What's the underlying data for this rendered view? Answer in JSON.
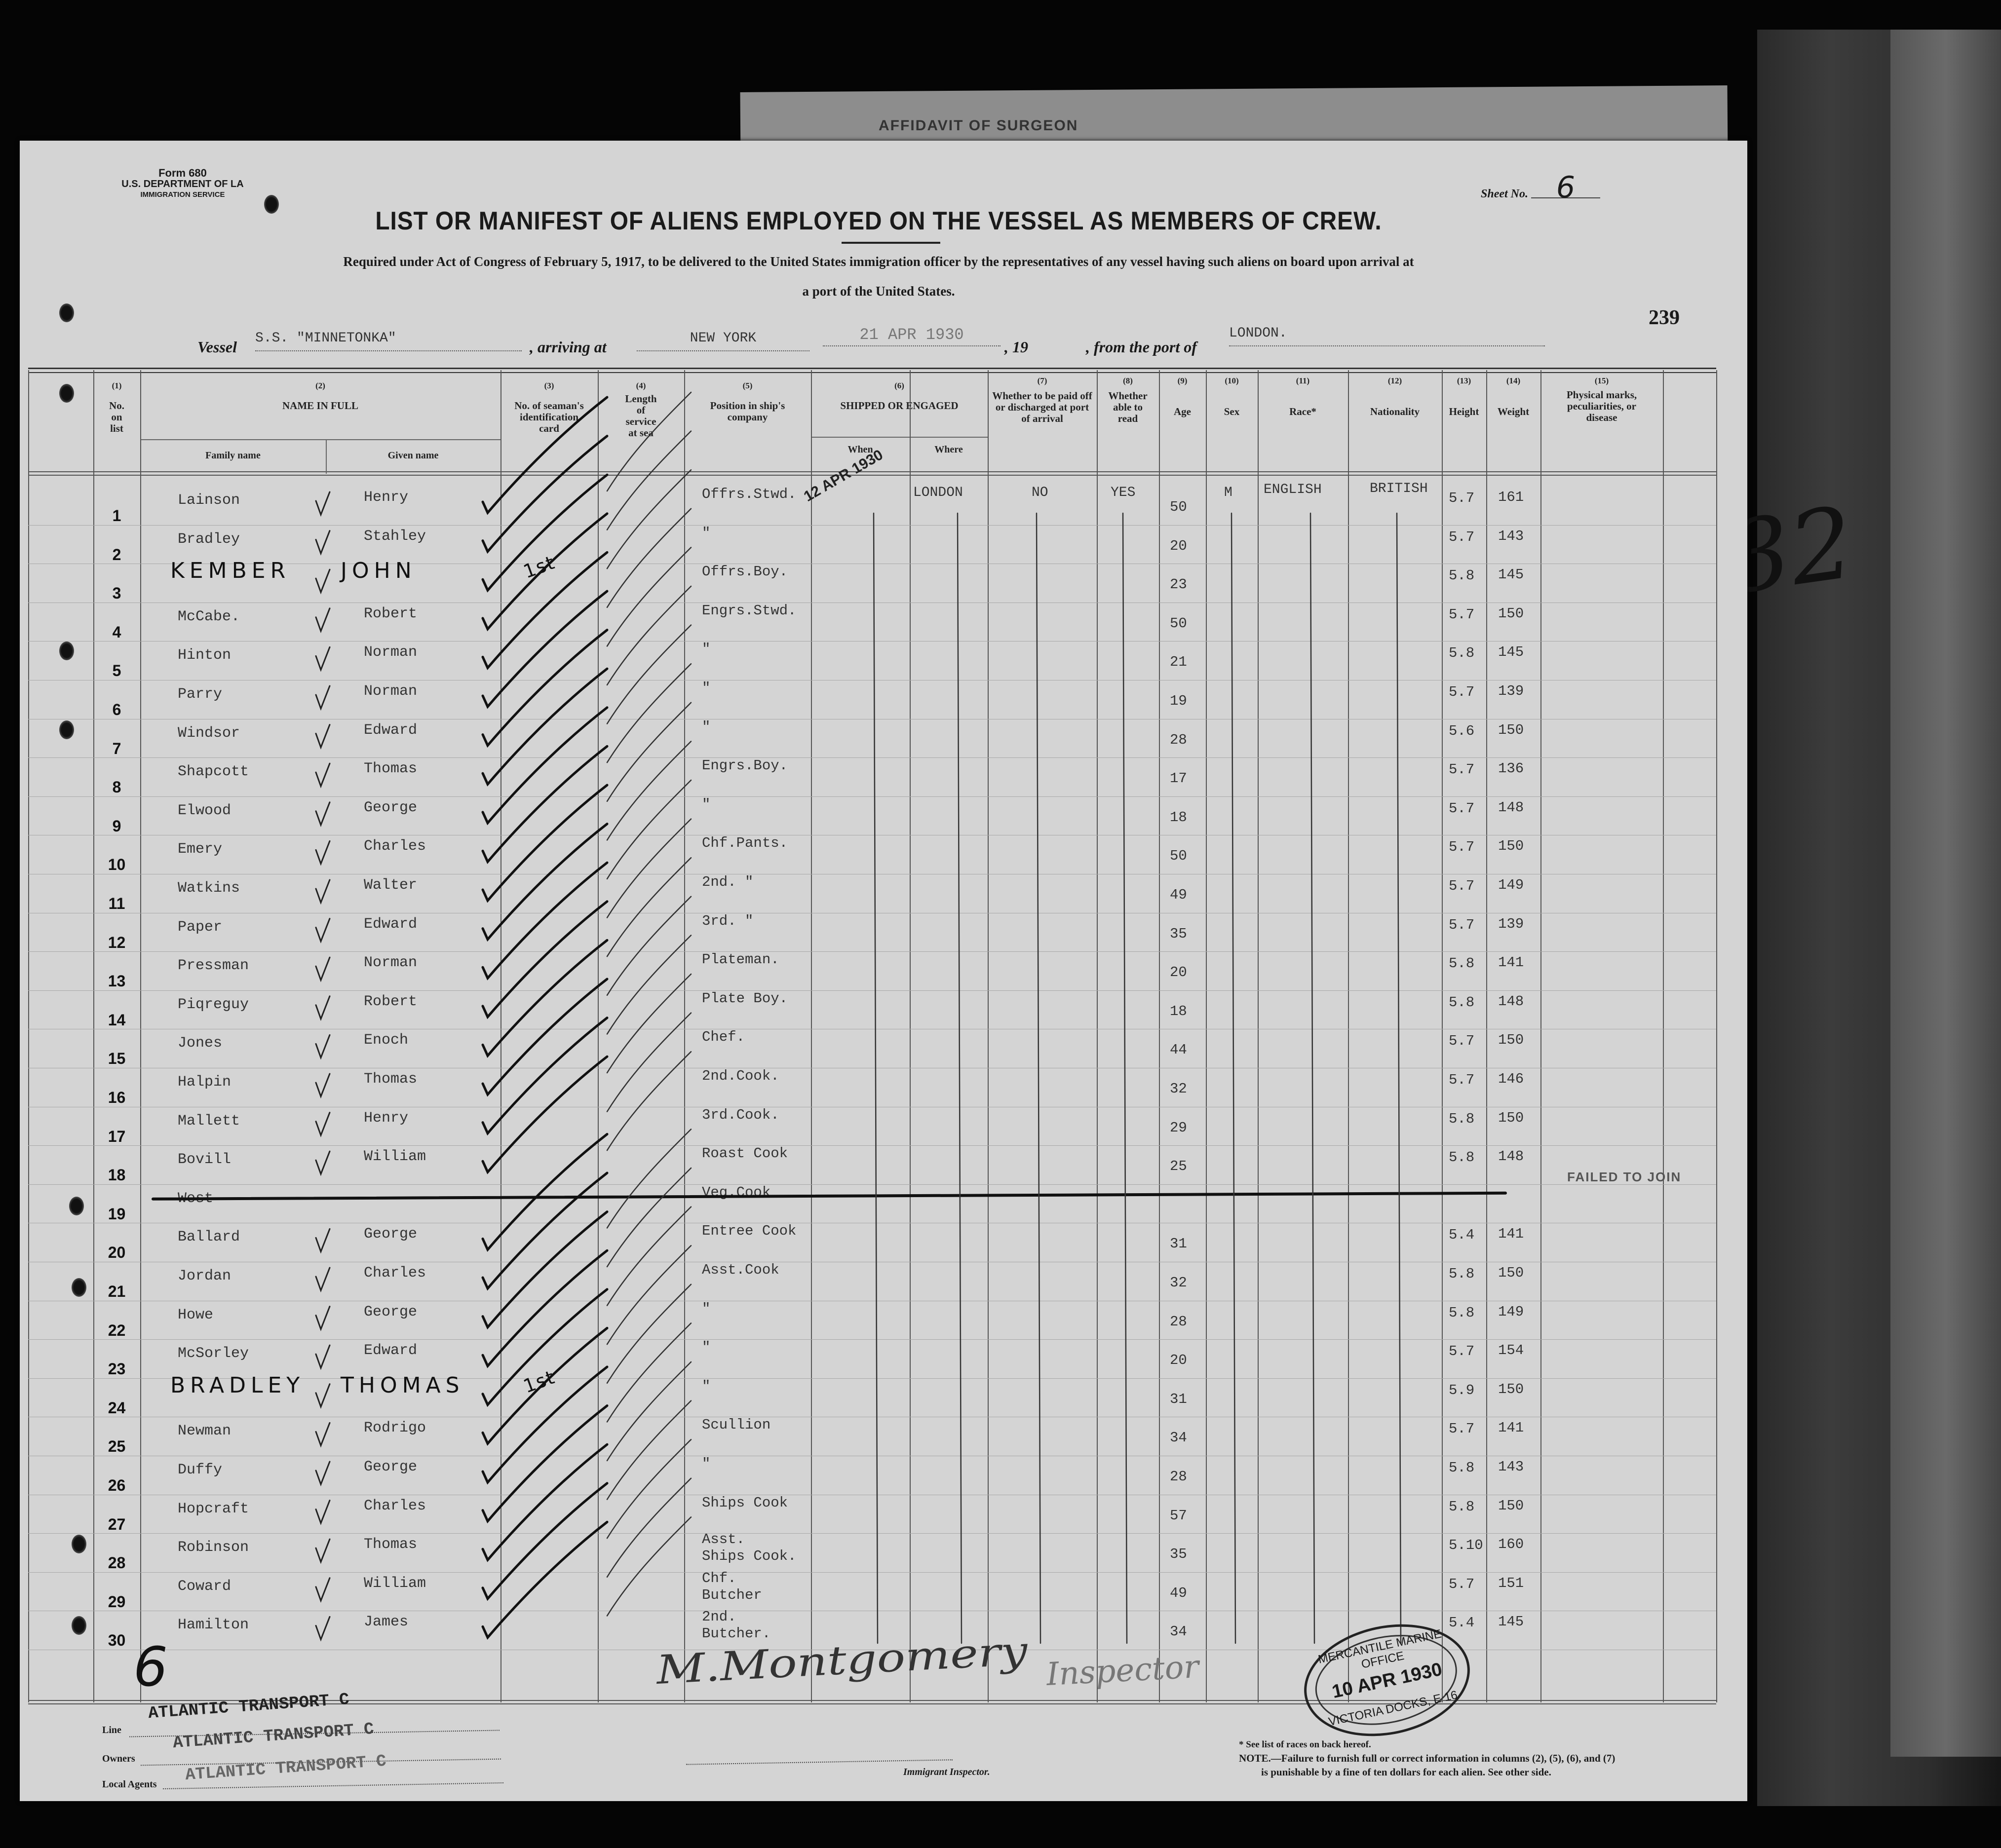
{
  "form": {
    "form_no": "Form 680",
    "dept": "U.S. DEPARTMENT OF LA",
    "service": "IMMIGRATION SERVICE",
    "sheet_label": "Sheet No.",
    "sheet_no": "6",
    "page_no": "239",
    "behind_stamp": "AFFIDAVIT OF SURGEON"
  },
  "title": "LIST OR MANIFEST OF ALIENS EMPLOYED ON THE VESSEL AS MEMBERS OF CREW.",
  "subtitle_1": "Required under Act of Congress of February 5, 1917, to be delivered to the United States immigration officer by the representatives of any vessel having such aliens on board upon arrival at",
  "subtitle_2": "a port of the United States.",
  "vessel": {
    "vessel_label": "Vessel",
    "vessel": "S.S. \"MINNETONKA\"",
    "arriving_label": ", arriving at",
    "arriving": "NEW YORK",
    "date": "21 APR 1930",
    "year_label": ", 19",
    "from_label": ", from the port of",
    "from": "LONDON."
  },
  "columns": {
    "c1": {
      "num": "(1)",
      "label": "No. on list"
    },
    "c2": {
      "num": "(2)",
      "label": "NAME IN FULL",
      "family": "Family name",
      "given": "Given name"
    },
    "c3": {
      "num": "(3)",
      "label": "No. of seaman's identification card"
    },
    "c4": {
      "num": "(4)",
      "label": "Length of service at sea"
    },
    "c5": {
      "num": "(5)",
      "label": "Position in ship's company"
    },
    "c6": {
      "num": "(6)",
      "label": "SHIPPED OR ENGAGED",
      "when": "When",
      "where": "Where"
    },
    "c7": {
      "num": "(7)",
      "label": "Whether to be paid off or discharged at port of arrival"
    },
    "c8": {
      "num": "(8)",
      "label": "Whether able to read"
    },
    "c9": {
      "num": "(9)",
      "label": "Age"
    },
    "c10": {
      "num": "(10)",
      "label": "Sex"
    },
    "c11": {
      "num": "(11)",
      "label": "Race*"
    },
    "c12": {
      "num": "(12)",
      "label": "Nationality"
    },
    "c13": {
      "num": "(13)",
      "label": "Height"
    },
    "c14": {
      "num": "(14)",
      "label": "Weight"
    },
    "c15": {
      "num": "(15)",
      "label": "Physical marks, peculiarities, or disease"
    }
  },
  "first_row": {
    "when": "12 APR 1930",
    "where": "LONDON",
    "paid_off": "NO",
    "able_to_read": "YES",
    "sex": "M",
    "race": "ENGLISH",
    "nationality": "BRITISH"
  },
  "rows": [
    {
      "no": "1",
      "family": "Lainson",
      "given": "Henry",
      "position": "Offrs.Stwd.",
      "age": "50",
      "height": "5.7",
      "weight": "161"
    },
    {
      "no": "2",
      "family": "Bradley",
      "given": "Stahley",
      "position": "\"",
      "age": "20",
      "height": "5.7",
      "weight": "143"
    },
    {
      "no": "3",
      "family": "KEMBER",
      "given": "JOHN",
      "position": "Offrs.Boy.",
      "age": "23",
      "height": "5.8",
      "weight": "145",
      "handwritten": true,
      "card": "1st"
    },
    {
      "no": "4",
      "family": "McCabe.",
      "given": "Robert",
      "position": "Engrs.Stwd.",
      "age": "50",
      "height": "5.7",
      "weight": "150"
    },
    {
      "no": "5",
      "family": "Hinton",
      "given": "Norman",
      "position": "\"",
      "age": "21",
      "height": "5.8",
      "weight": "145"
    },
    {
      "no": "6",
      "family": "Parry",
      "given": "Norman",
      "position": "\"",
      "age": "19",
      "height": "5.7",
      "weight": "139"
    },
    {
      "no": "7",
      "family": "Windsor",
      "given": "Edward",
      "position": "\"",
      "age": "28",
      "height": "5.6",
      "weight": "150"
    },
    {
      "no": "8",
      "family": "Shapcott",
      "given": "Thomas",
      "position": "Engrs.Boy.",
      "age": "17",
      "height": "5.7",
      "weight": "136"
    },
    {
      "no": "9",
      "family": "Elwood",
      "given": "George",
      "position": "\"",
      "age": "18",
      "height": "5.7",
      "weight": "148"
    },
    {
      "no": "10",
      "family": "Emery",
      "given": "Charles",
      "position": "Chf.Pants.",
      "age": "50",
      "height": "5.7",
      "weight": "150"
    },
    {
      "no": "11",
      "family": "Watkins",
      "given": "Walter",
      "position": "2nd. \"",
      "age": "49",
      "height": "5.7",
      "weight": "149"
    },
    {
      "no": "12",
      "family": "Paper",
      "given": "Edward",
      "position": "3rd. \"",
      "age": "35",
      "height": "5.7",
      "weight": "139"
    },
    {
      "no": "13",
      "family": "Pressman",
      "given": "Norman",
      "position": "Plateman.",
      "age": "20",
      "height": "5.8",
      "weight": "141"
    },
    {
      "no": "14",
      "family": "Piqreguy",
      "given": "Robert",
      "position": "Plate Boy.",
      "age": "18",
      "height": "5.8",
      "weight": "148"
    },
    {
      "no": "15",
      "family": "Jones",
      "given": "Enoch",
      "position": "Chef.",
      "age": "44",
      "height": "5.7",
      "weight": "150"
    },
    {
      "no": "16",
      "family": "Halpin",
      "given": "Thomas",
      "position": "2nd.Cook.",
      "age": "32",
      "height": "5.7",
      "weight": "146"
    },
    {
      "no": "17",
      "family": "Mallett",
      "given": "Henry",
      "position": "3rd.Cook.",
      "age": "29",
      "height": "5.8",
      "weight": "150"
    },
    {
      "no": "18",
      "family": "Bovill",
      "given": "William",
      "position": "Roast Cook",
      "age": "25",
      "height": "5.8",
      "weight": "148"
    },
    {
      "no": "19",
      "family": "West",
      "given": "",
      "position": "Veg.Cook",
      "age": "",
      "height": "",
      "weight": "",
      "struck": true,
      "marks": "FAILED TO JOIN"
    },
    {
      "no": "20",
      "family": "Ballard",
      "given": "George",
      "position": "Entree Cook",
      "age": "31",
      "height": "5.4",
      "weight": "141"
    },
    {
      "no": "21",
      "family": "Jordan",
      "given": "Charles",
      "position": "Asst.Cook",
      "age": "32",
      "height": "5.8",
      "weight": "150"
    },
    {
      "no": "22",
      "family": "Howe",
      "given": "George",
      "position": "\"",
      "age": "28",
      "height": "5.8",
      "weight": "149"
    },
    {
      "no": "23",
      "family": "McSorley",
      "given": "Edward",
      "position": "\"",
      "age": "20",
      "height": "5.7",
      "weight": "154"
    },
    {
      "no": "24",
      "family": "BRADLEY",
      "given": "THOMAS",
      "position": "\"",
      "age": "31",
      "height": "5.9",
      "weight": "150",
      "handwritten": true,
      "card": "1st"
    },
    {
      "no": "25",
      "family": "Newman",
      "given": "Rodrigo",
      "position": "Scullion",
      "age": "34",
      "height": "5.7",
      "weight": "141"
    },
    {
      "no": "26",
      "family": "Duffy",
      "given": "George",
      "position": "\"",
      "age": "28",
      "height": "5.8",
      "weight": "143"
    },
    {
      "no": "27",
      "family": "Hopcraft",
      "given": "Charles",
      "position": "Ships Cook",
      "age": "57",
      "height": "5.8",
      "weight": "150"
    },
    {
      "no": "28",
      "family": "Robinson",
      "given": "Thomas",
      "position": "Asst.\nShips Cook.",
      "age": "35",
      "height": "5.10",
      "weight": "160"
    },
    {
      "no": "29",
      "family": "Coward",
      "given": "William",
      "position": "Chf.\nButcher",
      "age": "49",
      "height": "5.7",
      "weight": "151"
    },
    {
      "no": "30",
      "family": "Hamilton",
      "given": "James",
      "position": "2nd.\nButcher.",
      "age": "34",
      "height": "5.4",
      "weight": "145"
    }
  ],
  "annotations": {
    "total_hand": "6",
    "side_marks": "32"
  },
  "signature": {
    "name": "M.Montgomery",
    "title": "Inspector"
  },
  "stamp": {
    "top": "MERCANTILE MARINE OFFICE",
    "date": "10 APR 1930",
    "bottom": "VICTORIA DOCKS, E 16"
  },
  "footer": {
    "line_label": "Line",
    "owners_label": "Owners",
    "agents_label": "Local Agents",
    "company_1": "ATLANTIC TRANSPORT C",
    "company_2": "ATLANTIC TRANSPORT C",
    "company_3": "ATLANTIC TRANSPORT C",
    "inspector_label": "Immigrant Inspector.",
    "races_note": "* See list of races on back hereof.",
    "note_1": "NOTE.—Failure to furnish full or correct information in columns (2), (5), (6), and (7)",
    "note_2": "is punishable by a fine of ten dollars for each alien.  See other side."
  },
  "colors": {
    "paper": "#d4d4d4",
    "background": "#050505",
    "ink": "#1a1a1a"
  }
}
